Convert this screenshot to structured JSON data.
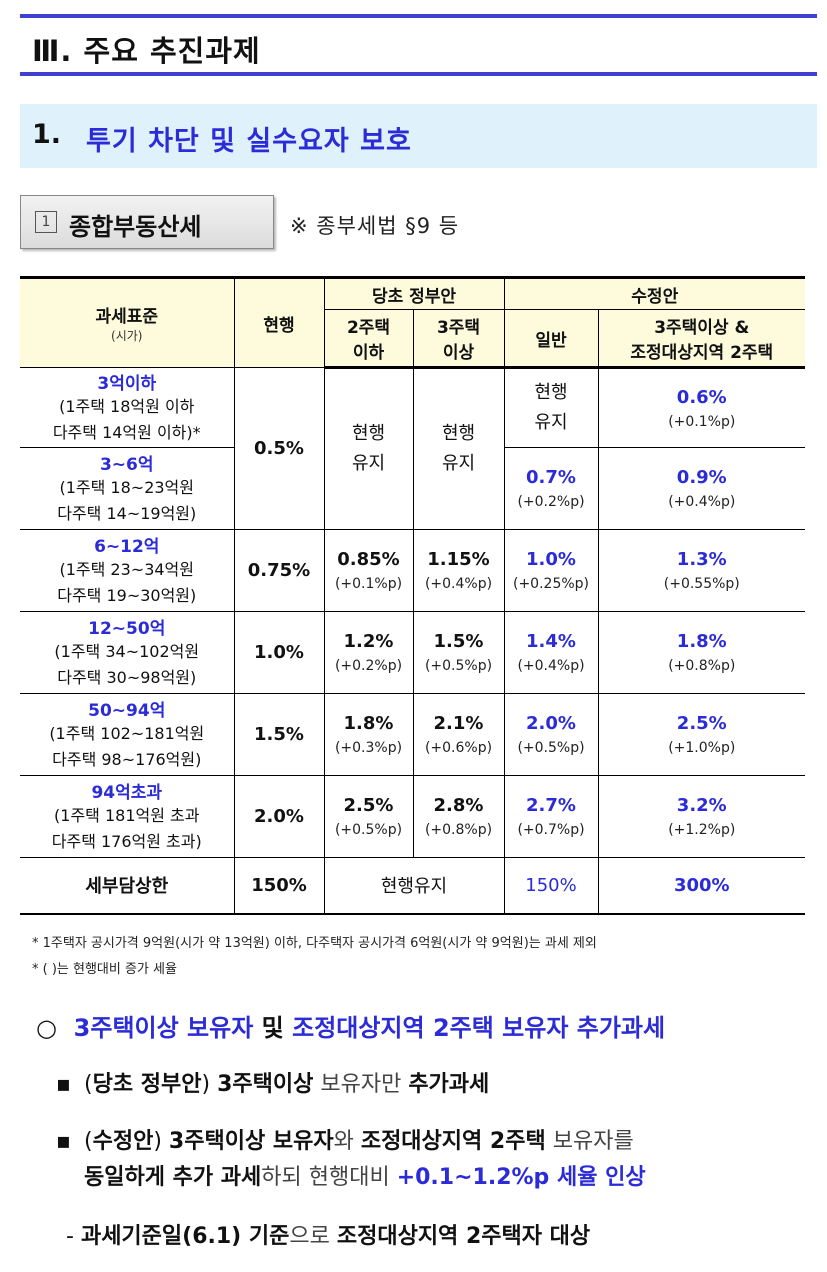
{
  "section_title": "Ⅲ. 주요 추진과제",
  "subtitle": {
    "num": "1.",
    "text": "투기 차단 및 실수요자 보호"
  },
  "label_box": {
    "marker": "1",
    "text": "종합부동산세"
  },
  "ref_note": "※ 종부세법 §9 등",
  "table": {
    "head": {
      "base": "과세표준",
      "base_sub": "(시가)",
      "current": "현행",
      "gov_plan": "당초 정부안",
      "gov_le2": [
        "2주택",
        "이하"
      ],
      "gov_ge3": [
        "3주택",
        "이상"
      ],
      "revised": "수정안",
      "rev_general": "일반",
      "rev_special": [
        "3주택이상 &",
        "조정대상지역 2주택"
      ]
    },
    "rows": [
      {
        "range": "3억이하",
        "d1": "(1주택 18억원 이하",
        "d2": "다주택 14억원 이하)*",
        "rev_general": "현행\n유지",
        "rev_special": "0.6%",
        "rev_special_diff": "(+0.1%p)"
      },
      {
        "range": "3~6억",
        "d1": "(1주택 18~23억원",
        "d2": "다주택 14~19억원)",
        "rev_general": "0.7%",
        "rev_general_diff": "(+0.2%p)",
        "rev_special": "0.9%",
        "rev_special_diff": "(+0.4%p)"
      },
      {
        "range": "6~12억",
        "d1": "(1주택 23~34억원",
        "d2": "다주택 19~30억원)",
        "current": "0.75%",
        "gov_le2": "0.85%",
        "gov_le2_diff": "(+0.1%p)",
        "gov_ge3": "1.15%",
        "gov_ge3_diff": "(+0.4%p)",
        "rev_general": "1.0%",
        "rev_general_diff": "(+0.25%p)",
        "rev_special": "1.3%",
        "rev_special_diff": "(+0.55%p)"
      },
      {
        "range": "12~50억",
        "d1": "(1주택 34~102억원",
        "d2": "다주택 30~98억원)",
        "current": "1.0%",
        "gov_le2": "1.2%",
        "gov_le2_diff": "(+0.2%p)",
        "gov_ge3": "1.5%",
        "gov_ge3_diff": "(+0.5%p)",
        "rev_general": "1.4%",
        "rev_general_diff": "(+0.4%p)",
        "rev_special": "1.8%",
        "rev_special_diff": "(+0.8%p)"
      },
      {
        "range": "50~94억",
        "d1": "(1주택 102~181억원",
        "d2": "다주택 98~176억원)",
        "current": "1.5%",
        "gov_le2": "1.8%",
        "gov_le2_diff": "(+0.3%p)",
        "gov_ge3": "2.1%",
        "gov_ge3_diff": "(+0.6%p)",
        "rev_general": "2.0%",
        "rev_general_diff": "(+0.5%p)",
        "rev_special": "2.5%",
        "rev_special_diff": "(+1.0%p)"
      },
      {
        "range": "94억초과",
        "d1": "(1주택 181억원 초과",
        "d2": "다주택 176억원 초과)",
        "current": "2.0%",
        "gov_le2": "2.5%",
        "gov_le2_diff": "(+0.5%p)",
        "gov_ge3": "2.8%",
        "gov_ge3_diff": "(+0.8%p)",
        "rev_general": "2.7%",
        "rev_general_diff": "(+0.7%p)",
        "rev_special": "3.2%",
        "rev_special_diff": "(+1.2%p)"
      }
    ],
    "merged": {
      "current_top": "0.5%",
      "gov_le2_top": "현행\n유지",
      "gov_ge3_top": "현행\n유지"
    },
    "cap_row": {
      "label": "세부담상한",
      "current": "150%",
      "gov": "현행유지",
      "rev_general": "150%",
      "rev_special": "300%"
    }
  },
  "footnotes": [
    "* 1주택자 공시가격 9억원(시가 약 13억원) 이하, 다주택자 공시가격 6억원(시가 약 9억원)는 과세 제외",
    "* (   )는 현행대비 증가 세율"
  ],
  "bullets": {
    "main": {
      "circle": "○",
      "p1": "3주택이상 보유자",
      "p2": "및",
      "p3": "조정대상지역 2주택 보유자 추가과세"
    },
    "sub1": {
      "dot": "▪",
      "p1": "(",
      "p2": "당초 정부안",
      "p3": ")",
      "p4": "3주택이상",
      "p5": "보유자만",
      "p6": "추가과세"
    },
    "sub2": {
      "dot": "▪",
      "p1": "(",
      "p2": "수정안",
      "p3": ")",
      "p4": "3주택이상 보유자",
      "p5": "와",
      "p6": "조정대상지역 2주택",
      "p7": "보유자를",
      "line2a": "동일하게 추가 과세",
      "line2b": "하되 현행대비",
      "line2c": "+0.1~1.2%p 세율 인상"
    },
    "sub3": {
      "dash": "-",
      "p1": "과세기준일(6.1) 기준",
      "p2": "으로",
      "p3": "조정대상지역 2주택자 대상"
    }
  }
}
